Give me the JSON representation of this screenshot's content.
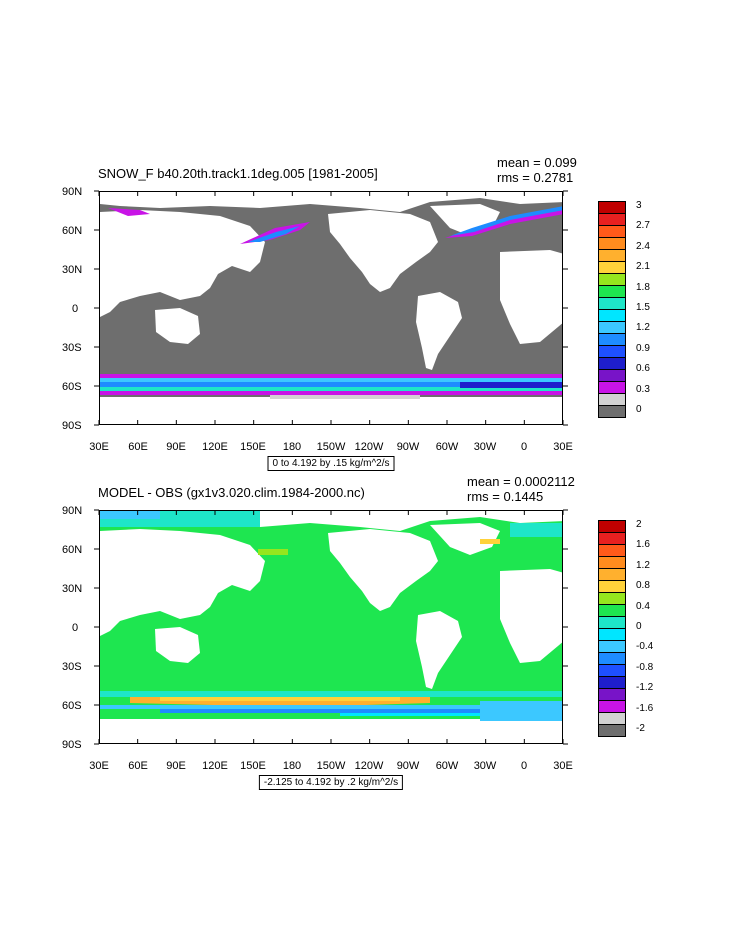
{
  "panels": [
    {
      "title": "SNOW_F b40.20th.track1.1deg.005 [1981-2005]",
      "mean": "mean = 0.099",
      "rms": "rms = 0.2781",
      "info": "0 to 4.192 by .15 kg/m^2/s",
      "lat_labels": [
        "90N",
        "60N",
        "30N",
        "0",
        "30S",
        "60S",
        "90S"
      ],
      "lon_labels": [
        "30E",
        "60E",
        "90E",
        "120E",
        "150E",
        "180",
        "150W",
        "120W",
        "90W",
        "60W",
        "30W",
        "0",
        "30E"
      ],
      "legend": {
        "labels": [
          "3",
          "2.7",
          "2.4",
          "2.1",
          "1.8",
          "1.5",
          "1.2",
          "0.9",
          "0.6",
          "0.3",
          "0"
        ],
        "colors": [
          "#c00000",
          "#e82020",
          "#ff5a1a",
          "#ff8c1e",
          "#ffb02e",
          "#ffd23a",
          "#96e61e",
          "#1ee650",
          "#1ee6c8",
          "#00e6ff",
          "#3cc8ff",
          "#1e8cff",
          "#1e50ff",
          "#1e1ecc",
          "#7814c8",
          "#c814e6",
          "#d2d2d2",
          "#6e6e6e"
        ]
      },
      "ocean_color": "#6e6e6e",
      "land_color": "#ffffff"
    },
    {
      "title": "MODEL - OBS (gx1v3.020.clim.1984-2000.nc)",
      "mean": "mean = 0.0002112",
      "rms": "rms = 0.1445",
      "info": "-2.125 to 4.192 by .2 kg/m^2/s",
      "lat_labels": [
        "90N",
        "60N",
        "30N",
        "0",
        "30S",
        "60S",
        "90S"
      ],
      "lon_labels": [
        "30E",
        "60E",
        "90E",
        "120E",
        "150E",
        "180",
        "150W",
        "120W",
        "90W",
        "60W",
        "30W",
        "0",
        "30E"
      ],
      "legend": {
        "labels": [
          "2",
          "1.6",
          "1.2",
          "0.8",
          "0.4",
          "0",
          "-0.4",
          "-0.8",
          "-1.2",
          "-1.6",
          "-2"
        ],
        "colors": [
          "#c00000",
          "#e82020",
          "#ff5a1a",
          "#ff8c1e",
          "#ffb02e",
          "#ffd23a",
          "#96e61e",
          "#1ee650",
          "#1ee6c8",
          "#00e6ff",
          "#3cc8ff",
          "#1e8cff",
          "#1e50ff",
          "#1e1ecc",
          "#7814c8",
          "#c814e6",
          "#d2d2d2",
          "#6e6e6e"
        ]
      },
      "ocean_color": "#1ee650",
      "land_color": "#ffffff"
    }
  ]
}
